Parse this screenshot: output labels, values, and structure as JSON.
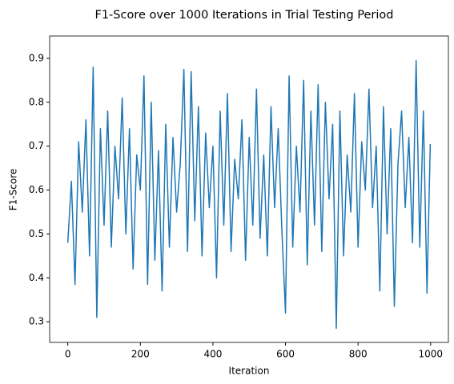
{
  "chart_data": {
    "type": "line",
    "title": "F1-Score over 1000 Iterations in Trial Testing Period",
    "xlabel": "Iteration",
    "ylabel": "F1-Score",
    "x": [
      0,
      10,
      20,
      30,
      40,
      50,
      60,
      70,
      80,
      90,
      100,
      110,
      120,
      130,
      140,
      150,
      160,
      170,
      180,
      190,
      200,
      210,
      220,
      230,
      240,
      250,
      260,
      270,
      280,
      290,
      300,
      310,
      320,
      330,
      340,
      350,
      360,
      370,
      380,
      390,
      400,
      410,
      420,
      430,
      440,
      450,
      460,
      470,
      480,
      490,
      500,
      510,
      520,
      530,
      540,
      550,
      560,
      570,
      580,
      590,
      600,
      610,
      620,
      630,
      640,
      650,
      660,
      670,
      680,
      690,
      700,
      710,
      720,
      730,
      740,
      750,
      760,
      770,
      780,
      790,
      800,
      810,
      820,
      830,
      840,
      850,
      860,
      870,
      880,
      890,
      900,
      910,
      920,
      930,
      940,
      950,
      960,
      970,
      980,
      990,
      999
    ],
    "series": [
      {
        "name": "F1-Score",
        "color": "#1f77b4",
        "values": [
          0.48,
          0.62,
          0.385,
          0.71,
          0.55,
          0.76,
          0.45,
          0.88,
          0.31,
          0.74,
          0.52,
          0.78,
          0.47,
          0.7,
          0.58,
          0.81,
          0.5,
          0.74,
          0.42,
          0.68,
          0.6,
          0.86,
          0.385,
          0.8,
          0.44,
          0.69,
          0.37,
          0.75,
          0.47,
          0.72,
          0.55,
          0.66,
          0.875,
          0.46,
          0.87,
          0.53,
          0.79,
          0.45,
          0.73,
          0.56,
          0.7,
          0.4,
          0.78,
          0.52,
          0.82,
          0.46,
          0.67,
          0.58,
          0.76,
          0.44,
          0.72,
          0.52,
          0.83,
          0.49,
          0.68,
          0.45,
          0.79,
          0.56,
          0.74,
          0.51,
          0.32,
          0.86,
          0.47,
          0.7,
          0.55,
          0.85,
          0.43,
          0.78,
          0.52,
          0.84,
          0.46,
          0.8,
          0.58,
          0.75,
          0.285,
          0.78,
          0.45,
          0.68,
          0.55,
          0.82,
          0.47,
          0.71,
          0.6,
          0.83,
          0.56,
          0.7,
          0.37,
          0.79,
          0.5,
          0.74,
          0.335,
          0.66,
          0.78,
          0.56,
          0.72,
          0.48,
          0.895,
          0.47,
          0.78,
          0.365,
          0.705
        ]
      }
    ],
    "xlim": [
      -49.95,
      1048.95
    ],
    "xticks": [
      0,
      200,
      400,
      600,
      800,
      1000
    ],
    "ylim": [
      0.253,
      0.951
    ],
    "yticks": [
      0.3,
      0.4,
      0.5,
      0.6,
      0.7,
      0.8,
      0.9
    ],
    "grid": false
  }
}
